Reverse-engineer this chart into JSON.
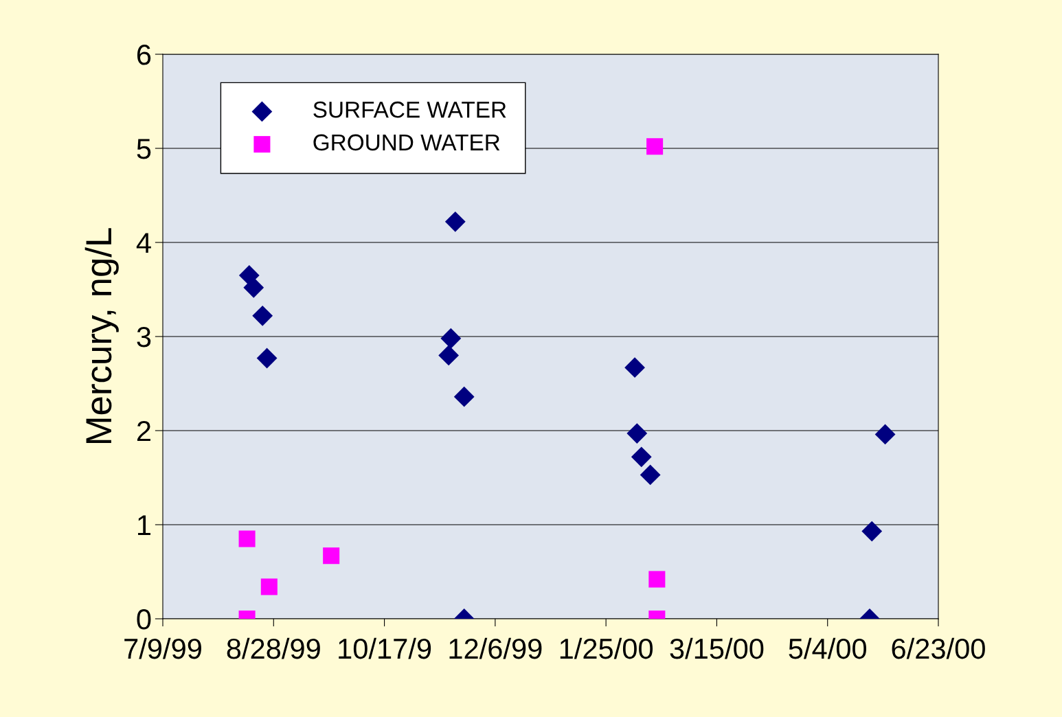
{
  "chart_data": {
    "type": "scatter",
    "ylabel": "Mercury, ng/L",
    "series": [
      {
        "name": "SURFACE WATER",
        "color": "#000080",
        "marker": "diamond",
        "x": [
          "1999-08-17",
          "1999-08-19",
          "1999-08-23",
          "1999-08-25",
          "1999-11-18",
          "1999-11-16",
          "1999-11-15",
          "1999-11-22",
          "1999-11-22",
          "2000-02-07",
          "2000-02-08",
          "2000-02-10",
          "2000-02-14",
          "2000-05-30",
          "2000-05-24",
          "2000-05-23"
        ],
        "values": [
          3.65,
          3.52,
          3.22,
          2.77,
          4.22,
          2.98,
          2.8,
          2.36,
          0,
          2.67,
          1.97,
          1.72,
          1.53,
          1.96,
          0.93,
          0
        ]
      },
      {
        "name": "GROUND WATER",
        "color": "#ff00ff",
        "marker": "square",
        "x": [
          "1999-08-16",
          "1999-08-16",
          "1999-08-26",
          "1999-09-23",
          "2000-02-16",
          "2000-02-17",
          "2000-02-17"
        ],
        "values": [
          0.85,
          0,
          0.34,
          0.67,
          5.02,
          0.42,
          0
        ]
      }
    ],
    "xlim": [
      "1999-07-09",
      "2000-06-23"
    ],
    "xticks": [
      {
        "value": "1999-07-09",
        "label": "7/9/99"
      },
      {
        "value": "1999-08-28",
        "label": "8/28/99"
      },
      {
        "value": "1999-10-17",
        "label": "10/17/9"
      },
      {
        "value": "1999-12-06",
        "label": "12/6/99"
      },
      {
        "value": "2000-01-25",
        "label": "1/25/00"
      },
      {
        "value": "2000-03-15",
        "label": "3/15/00"
      },
      {
        "value": "2000-05-04",
        "label": "5/4/00"
      },
      {
        "value": "2000-06-23",
        "label": "6/23/00"
      }
    ],
    "ylim": [
      0,
      6
    ],
    "yticks": [
      0,
      1,
      2,
      3,
      4,
      5,
      6
    ],
    "grid": "y",
    "legend": "top left"
  }
}
